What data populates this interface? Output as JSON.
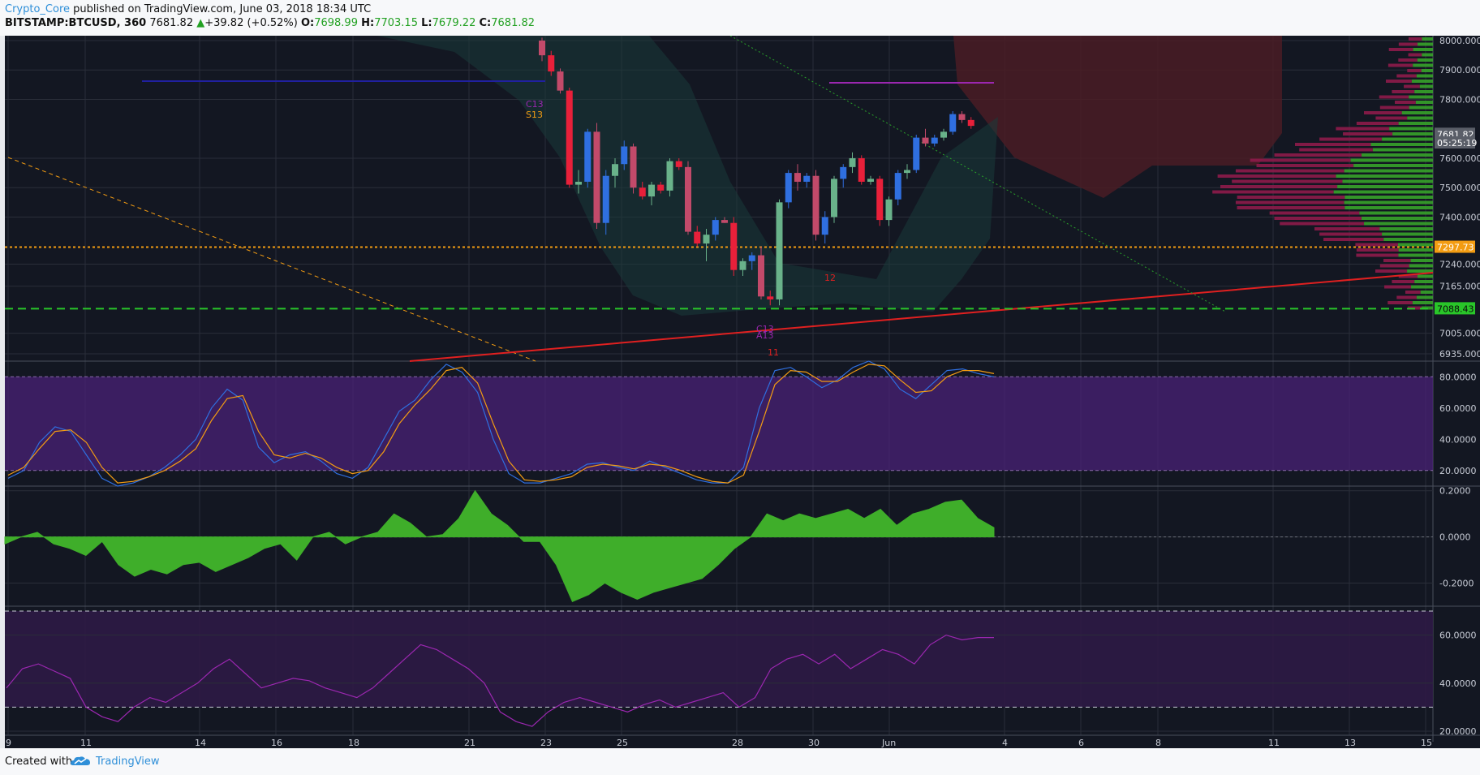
{
  "header": {
    "author": "Crypto_Core",
    "published": "published on TradingView.com, June 03, 2018 18:34 UTC",
    "symbol": "BITSTAMP:BTCUSD, 360",
    "last": "7681.82",
    "change": "+39.82 (+0.52%)",
    "o_label": "O:",
    "o": "7698.99",
    "h_label": "H:",
    "h": "7703.15",
    "l_label": "L:",
    "l": "7679.22",
    "c_label": "C:",
    "c": "7681.82"
  },
  "footer": {
    "created": "Created with",
    "brand": "TradingView"
  },
  "colors": {
    "background": "#131722",
    "up": "#26a69a",
    "down": "#ef5350",
    "purple": "#9b27b0",
    "blue": "#2f6fe0",
    "orange": "#f39c12",
    "green": "#3fae2a",
    "red": "#e02020"
  },
  "chart_data": [
    {
      "type": "candlestick",
      "title": "BITSTAMP:BTCUSD, 360",
      "ylim": [
        6900,
        8050
      ],
      "y_ticks": [
        "8000.0000",
        "7900.0000",
        "7800.0000",
        "7600.0000",
        "7500.0000",
        "7400.0000",
        "7240.0000",
        "7165.0000",
        "7005.0000",
        "6935.0000"
      ],
      "x_ticks": [
        "9",
        "11",
        "14",
        "16",
        "18",
        "21",
        "23",
        "25",
        "28",
        "30",
        "Jun",
        "4",
        "6",
        "8",
        "11",
        "13",
        "15"
      ],
      "price_labels": [
        {
          "text": "7681.82",
          "value": 7681.82
        },
        {
          "text": "05:25:19",
          "value": 7650
        },
        {
          "text": "7297.73",
          "value": 7297.73
        },
        {
          "text": "7088.43",
          "value": 7088.43
        }
      ],
      "horizontal_lines": [
        {
          "value": 7297.73,
          "style": "dotted",
          "color": "#f39c12"
        },
        {
          "value": 7088.43,
          "style": "dashed",
          "color": "#29c629"
        }
      ],
      "annotations": [
        "C13",
        "S13",
        "C13",
        "A13",
        "11",
        "12"
      ],
      "candles": [
        [
          8000,
          8010,
          7930,
          7950
        ],
        [
          7950,
          7965,
          7880,
          7895
        ],
        [
          7895,
          7905,
          7820,
          7830
        ],
        [
          7830,
          7840,
          7500,
          7510
        ],
        [
          7510,
          7560,
          7480,
          7520
        ],
        [
          7520,
          7700,
          7500,
          7690
        ],
        [
          7690,
          7720,
          7360,
          7380
        ],
        [
          7380,
          7560,
          7340,
          7540
        ],
        [
          7540,
          7600,
          7500,
          7580
        ],
        [
          7580,
          7660,
          7560,
          7640
        ],
        [
          7640,
          7650,
          7480,
          7500
        ],
        [
          7500,
          7520,
          7460,
          7470
        ],
        [
          7470,
          7520,
          7440,
          7510
        ],
        [
          7510,
          7520,
          7480,
          7490
        ],
        [
          7490,
          7600,
          7470,
          7590
        ],
        [
          7590,
          7600,
          7560,
          7570
        ],
        [
          7570,
          7590,
          7340,
          7350
        ],
        [
          7350,
          7370,
          7300,
          7310
        ],
        [
          7310,
          7360,
          7250,
          7340
        ],
        [
          7340,
          7400,
          7320,
          7390
        ],
        [
          7390,
          7400,
          7380,
          7380
        ],
        [
          7380,
          7400,
          7200,
          7220
        ],
        [
          7220,
          7260,
          7200,
          7250
        ],
        [
          7250,
          7280,
          7220,
          7270
        ],
        [
          7270,
          7300,
          7120,
          7130
        ],
        [
          7130,
          7150,
          7100,
          7120
        ],
        [
          7120,
          7460,
          7100,
          7450
        ],
        [
          7450,
          7560,
          7430,
          7550
        ],
        [
          7550,
          7580,
          7490,
          7520
        ],
        [
          7520,
          7550,
          7500,
          7540
        ],
        [
          7540,
          7560,
          7320,
          7340
        ],
        [
          7340,
          7420,
          7310,
          7400
        ],
        [
          7400,
          7540,
          7380,
          7530
        ],
        [
          7530,
          7580,
          7500,
          7570
        ],
        [
          7570,
          7620,
          7550,
          7600
        ],
        [
          7600,
          7610,
          7510,
          7520
        ],
        [
          7520,
          7540,
          7510,
          7530
        ],
        [
          7530,
          7540,
          7370,
          7390
        ],
        [
          7390,
          7470,
          7370,
          7460
        ],
        [
          7460,
          7560,
          7440,
          7550
        ],
        [
          7550,
          7580,
          7530,
          7560
        ],
        [
          7560,
          7680,
          7550,
          7670
        ],
        [
          7670,
          7700,
          7640,
          7650
        ],
        [
          7650,
          7680,
          7640,
          7670
        ],
        [
          7670,
          7700,
          7660,
          7690
        ],
        [
          7690,
          7760,
          7680,
          7750
        ],
        [
          7750,
          7760,
          7720,
          7730
        ],
        [
          7730,
          7740,
          7700,
          7710
        ]
      ]
    },
    {
      "type": "line",
      "title": "Stochastic",
      "ylim": [
        10,
        90
      ],
      "y_ticks": [
        "80.0000",
        "60.0000",
        "40.0000",
        "20.0000"
      ],
      "bands": [
        80,
        20
      ],
      "series": [
        {
          "name": "",
          "color": "#2f6fe0",
          "values": [
            15,
            20,
            38,
            48,
            45,
            30,
            15,
            10,
            12,
            16,
            22,
            30,
            40,
            60,
            72,
            65,
            35,
            25,
            30,
            32,
            26,
            18,
            15,
            22,
            40,
            58,
            65,
            78,
            88,
            83,
            70,
            40,
            18,
            12,
            12,
            15,
            18,
            24,
            25,
            22,
            20,
            26,
            22,
            18,
            14,
            12,
            12,
            22,
            60,
            84,
            86,
            80,
            73,
            78,
            86,
            90,
            85,
            72,
            66,
            75,
            84,
            85,
            82,
            80
          ]
        },
        {
          "name": "",
          "color": "#f39c12",
          "values": [
            17,
            22,
            34,
            45,
            46,
            38,
            22,
            12,
            13,
            16,
            20,
            26,
            34,
            52,
            66,
            68,
            45,
            30,
            28,
            31,
            28,
            22,
            18,
            20,
            32,
            50,
            62,
            72,
            84,
            86,
            76,
            50,
            26,
            14,
            13,
            14,
            16,
            22,
            24,
            23,
            21,
            24,
            23,
            20,
            16,
            13,
            12,
            17,
            45,
            75,
            84,
            83,
            77,
            77,
            83,
            88,
            87,
            78,
            70,
            71,
            80,
            84,
            84,
            82
          ]
        }
      ]
    },
    {
      "type": "area",
      "title": "Momentum",
      "ylim": [
        -0.3,
        0.22
      ],
      "y_ticks": [
        "0.2000",
        "0.0000",
        "-0.2000"
      ],
      "values": [
        -0.03,
        0.0,
        0.02,
        -0.03,
        -0.05,
        -0.08,
        -0.02,
        -0.12,
        -0.17,
        -0.14,
        -0.16,
        -0.12,
        -0.11,
        -0.15,
        -0.12,
        -0.09,
        -0.05,
        -0.03,
        -0.1,
        0.0,
        0.02,
        -0.03,
        0.0,
        0.02,
        0.1,
        0.06,
        0.0,
        0.01,
        0.08,
        0.2,
        0.1,
        0.05,
        -0.02,
        -0.02,
        -0.12,
        -0.28,
        -0.25,
        -0.2,
        -0.24,
        -0.27,
        -0.24,
        -0.22,
        -0.2,
        -0.18,
        -0.12,
        -0.05,
        0.0,
        0.1,
        0.07,
        0.1,
        0.08,
        0.1,
        0.12,
        0.08,
        0.12,
        0.05,
        0.1,
        0.12,
        0.15,
        0.16,
        0.08,
        0.04
      ]
    },
    {
      "type": "line",
      "title": "RSI",
      "ylim": [
        20,
        70
      ],
      "y_ticks": [
        "60.0000",
        "40.0000",
        "20.0000"
      ],
      "bands": [
        70,
        30
      ],
      "series": [
        {
          "name": "",
          "color": "#9b27b0",
          "values": [
            38,
            46,
            48,
            45,
            42,
            30,
            26,
            24,
            30,
            34,
            32,
            36,
            40,
            46,
            50,
            44,
            38,
            40,
            42,
            41,
            38,
            36,
            34,
            38,
            44,
            50,
            56,
            54,
            50,
            46,
            40,
            28,
            24,
            22,
            28,
            32,
            34,
            32,
            30,
            28,
            31,
            33,
            30,
            32,
            34,
            36,
            30,
            34,
            46,
            50,
            52,
            48,
            52,
            46,
            50,
            54,
            52,
            48,
            56,
            60,
            58,
            59,
            59
          ]
        }
      ]
    }
  ]
}
